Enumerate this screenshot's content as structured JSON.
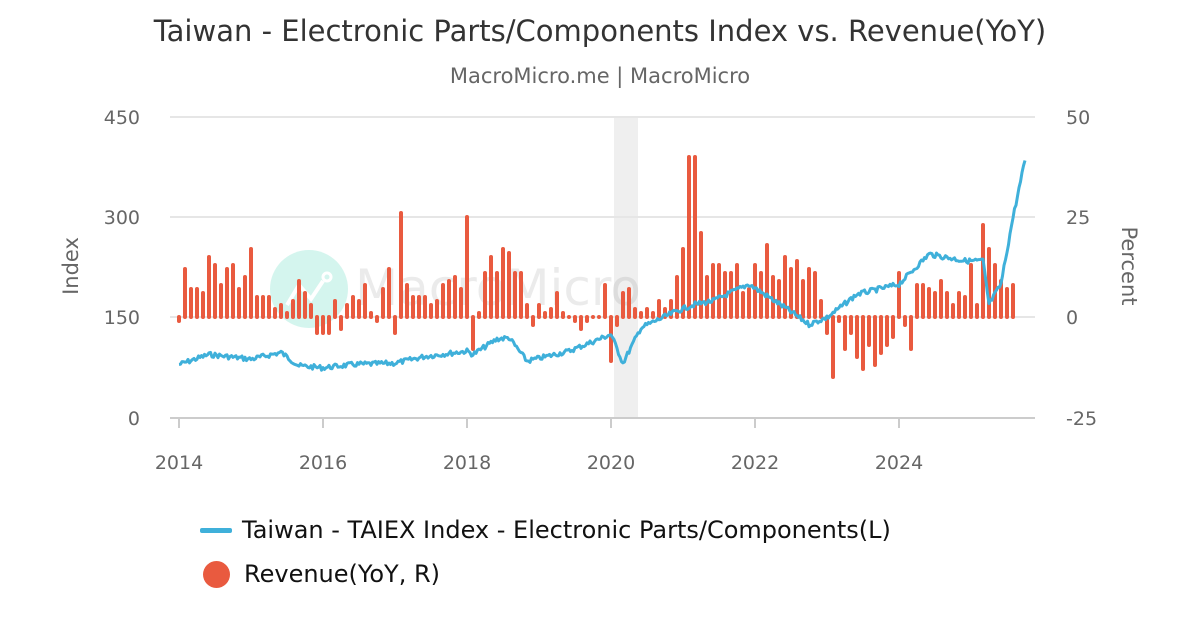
{
  "header": {
    "title": "Taiwan - Electronic Parts/Components Index vs. Revenue(YoY)",
    "subtitle": "MacroMicro.me | MacroMicro"
  },
  "watermark": {
    "text": "MacroMicro"
  },
  "colors": {
    "line": "#3fb0da",
    "bar": "#e95a3f",
    "grid": "#e6e6e6",
    "recession": "#efefef",
    "axis_text": "#666666",
    "watermark_circle": "#d4f5ee"
  },
  "legend": {
    "items": [
      {
        "label": "Taiwan - TAIEX Index - Electronic Parts/Components(L)",
        "marker": "line"
      },
      {
        "label": "Revenue(YoY, R)",
        "marker": "circle"
      }
    ]
  },
  "chart_data": {
    "type": "bar+line",
    "title": "Taiwan - Electronic Parts/Components Index vs. Revenue(YoY)",
    "subtitle": "MacroMicro.me | MacroMicro",
    "xlabel": "",
    "ylabel_left": "Index",
    "ylabel_right": "Percent",
    "ylim_left": [
      0,
      450
    ],
    "ylim_right": [
      -25,
      50
    ],
    "yticks_left": [
      "0",
      "150",
      "300",
      "450"
    ],
    "yticks_right": [
      "-25",
      "0",
      "25",
      "50"
    ],
    "xticks": [
      "2014",
      "2016",
      "2018",
      "2020",
      "2022",
      "2024"
    ],
    "grid": true,
    "legend_position": "bottom",
    "shaded_period": {
      "start": "2020-02",
      "end": "2020-05",
      "label": "recession"
    },
    "series": [
      {
        "name": "Taiwan - TAIEX Index - Electronic Parts/Components(L)",
        "type": "line",
        "axis": "left",
        "x": [
          "2014-01",
          "2014-06",
          "2015-01",
          "2015-06",
          "2015-09",
          "2016-01",
          "2016-06",
          "2017-01",
          "2017-06",
          "2018-01",
          "2018-02",
          "2018-06",
          "2018-08",
          "2018-11",
          "2019-06",
          "2020-01",
          "2020-03",
          "2020-06",
          "2020-12",
          "2021-03",
          "2021-06",
          "2021-12",
          "2022-06",
          "2022-10",
          "2023-01",
          "2023-06",
          "2024-01",
          "2024-06",
          "2024-12",
          "2025-03",
          "2025-04",
          "2025-06",
          "2025-08",
          "2025-10"
        ],
        "values": [
          80,
          95,
          88,
          98,
          78,
          75,
          80,
          82,
          92,
          100,
          95,
          118,
          120,
          85,
          100,
          125,
          82,
          135,
          160,
          170,
          175,
          200,
          165,
          140,
          150,
          185,
          200,
          245,
          235,
          235,
          170,
          200,
          300,
          385
        ]
      },
      {
        "name": "Revenue(YoY, R)",
        "type": "bar",
        "axis": "right",
        "start": "2014-01",
        "frequency": "monthly",
        "values": [
          -1,
          12,
          7,
          7,
          6,
          15,
          13,
          8,
          12,
          13,
          7,
          10,
          17,
          5,
          5,
          5,
          2,
          3,
          1,
          4,
          9,
          6,
          3,
          -4,
          -4,
          -4,
          4,
          -3,
          3,
          5,
          4,
          8,
          1,
          -1,
          7,
          12,
          -4,
          26,
          8,
          5,
          5,
          5,
          3,
          4,
          8,
          9,
          10,
          7,
          25,
          -8,
          1,
          11,
          15,
          11,
          17,
          16,
          11,
          11,
          3,
          -2,
          3,
          1,
          2,
          6,
          1,
          0,
          -1,
          -3,
          -1,
          0,
          0,
          8,
          -11,
          -2,
          6,
          7,
          2,
          1,
          2,
          1,
          4,
          2,
          4,
          10,
          17,
          40,
          40,
          21,
          10,
          13,
          13,
          11,
          11,
          13,
          6,
          7,
          13,
          11,
          18,
          10,
          9,
          15,
          12,
          14,
          9,
          12,
          11,
          4,
          -4,
          -15,
          -1,
          -8,
          -4,
          -10,
          -13,
          -7,
          -12,
          -9,
          -7,
          -5,
          11,
          -2,
          -8,
          8,
          8,
          7,
          6,
          9,
          6,
          3,
          6,
          5,
          13,
          3,
          23,
          17,
          13,
          9,
          7,
          8
        ]
      }
    ]
  }
}
